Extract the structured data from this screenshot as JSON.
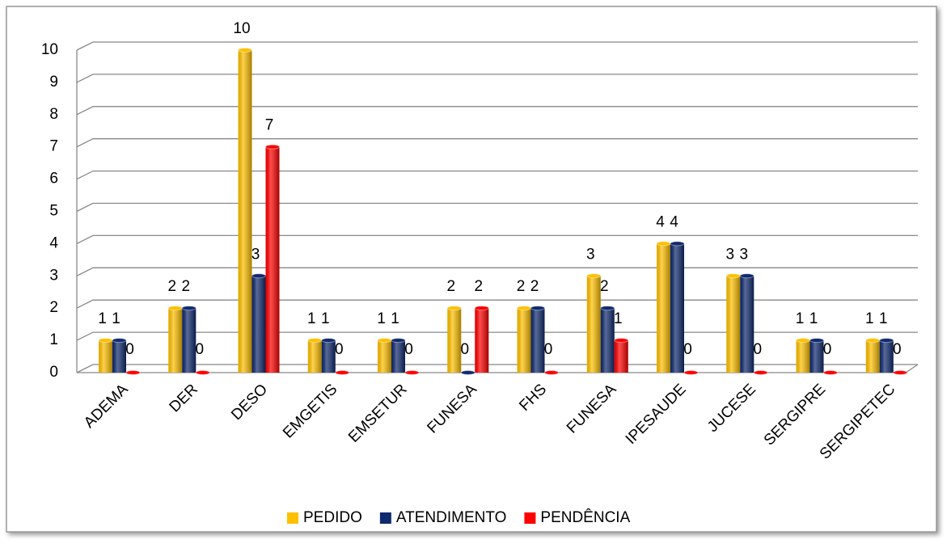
{
  "chart_data": {
    "type": "bar",
    "categories": [
      "ADEMA",
      "DER",
      "DESO",
      "EMGETIS",
      "EMSETUR",
      "FUNESA",
      "FHS",
      "FUNESA",
      "IPESAUDE",
      "JUCESE",
      "SERGIPRE",
      "SERGIPETEC"
    ],
    "series": [
      {
        "name": "PEDIDO",
        "color": "#ffc000",
        "values": [
          1,
          2,
          10,
          1,
          1,
          2,
          2,
          3,
          4,
          3,
          1,
          1
        ]
      },
      {
        "name": "ATENDIMENTO",
        "color": "#0f2a6e",
        "values": [
          1,
          2,
          3,
          1,
          1,
          0,
          2,
          2,
          4,
          3,
          1,
          1
        ]
      },
      {
        "name": "PENDÊNCIA",
        "color": "#ff0000",
        "values": [
          0,
          0,
          7,
          0,
          0,
          2,
          0,
          1,
          0,
          0,
          0,
          0
        ]
      }
    ],
    "ylim": [
      0,
      10
    ],
    "yticks": [
      0,
      1,
      2,
      3,
      4,
      5,
      6,
      7,
      8,
      9,
      10
    ],
    "grid": true,
    "legend": "bottom"
  }
}
